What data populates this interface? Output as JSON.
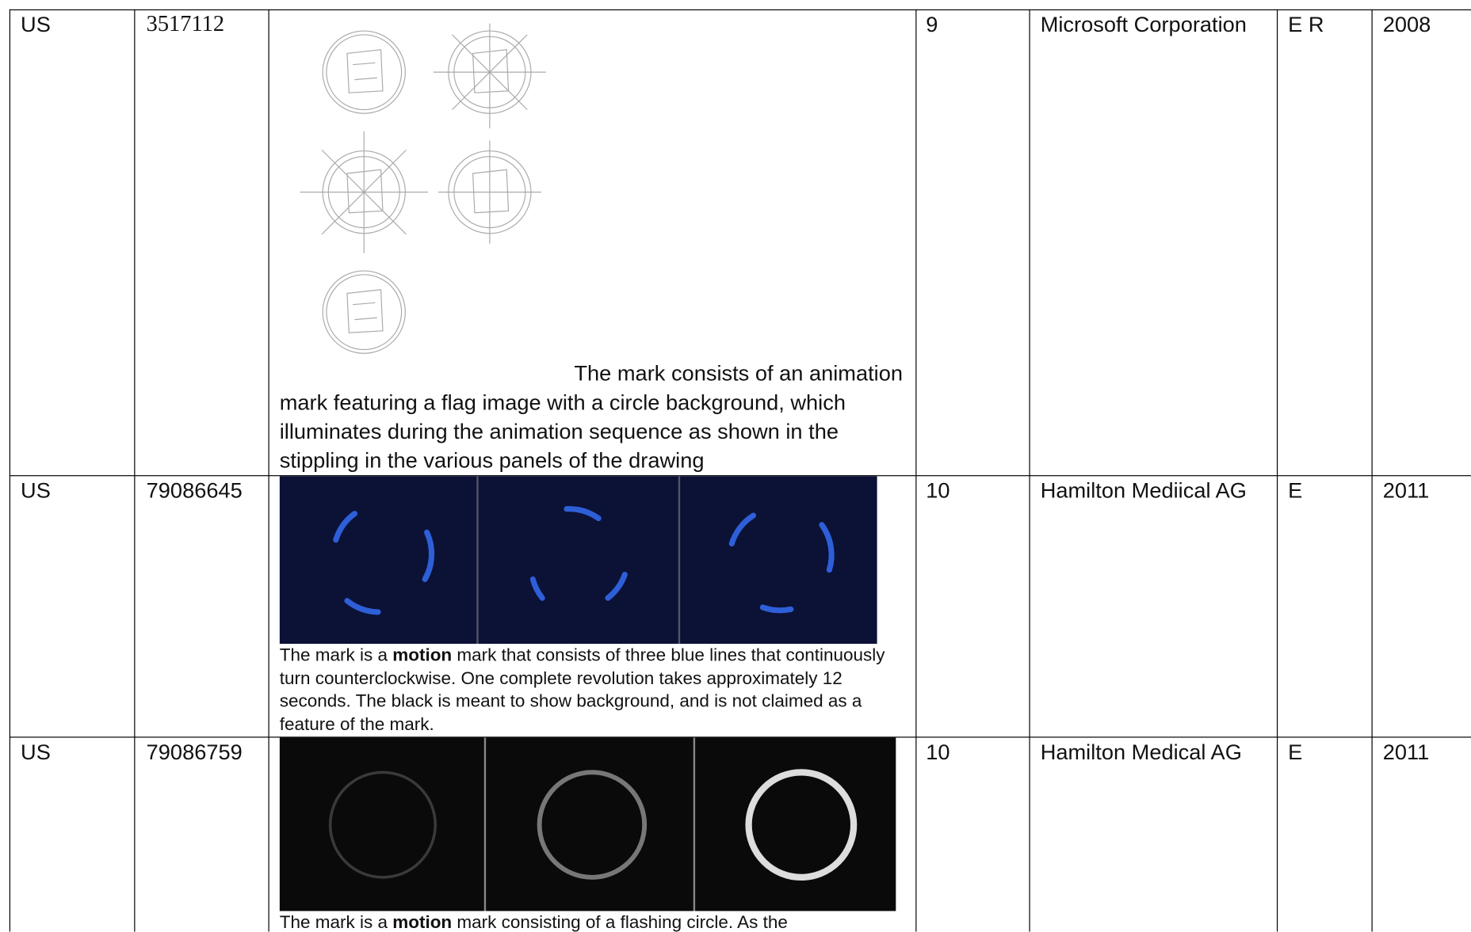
{
  "table": {
    "rows": [
      {
        "country": "US",
        "number": "3517112",
        "description": [
          "The mark consists of an animation mark featuring a flag image with a circle background, which illuminates during the animation sequence as shown in the stippling in the various panels of the drawing"
        ],
        "class": "9",
        "owner": "Microsoft Corporation",
        "type": "E R",
        "year": "2008"
      },
      {
        "country": "US",
        "number": "79086645",
        "description": [
          "The mark is a ",
          "motion",
          " mark that consists of three blue lines that continuously turn counterclockwise. One complete revolution takes approximately 12 seconds. The black is meant to show background, and is not claimed as a feature of the mark."
        ],
        "class": "10",
        "owner": "Hamilton Mediical AG",
        "type": "E",
        "year": "2011"
      },
      {
        "country": "US",
        "number": "79086759",
        "description": [
          "The mark is a ",
          "motion",
          " mark consisting of a flashing circle. As the"
        ],
        "class": "10",
        "owner": "Hamilton Medical AG",
        "type": "E",
        "year": "2011"
      }
    ]
  }
}
